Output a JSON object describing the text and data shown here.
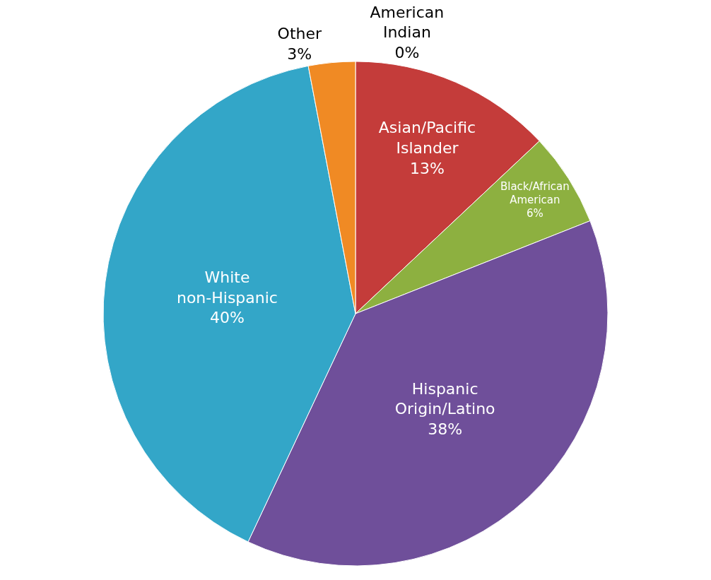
{
  "chart_data": {
    "type": "pie",
    "categories": [
      "American Indian",
      "Asian/Pacific Islander",
      "Black/African American",
      "Hispanic Origin/Latino",
      "White non-Hispanic",
      "Other"
    ],
    "values": [
      0,
      13,
      6,
      38,
      40,
      3
    ],
    "value_labels": [
      "0%",
      "13%",
      "6%",
      "38%",
      "40%",
      "3%"
    ],
    "colors": [
      "#1f5fa8",
      "#c43c3a",
      "#8db040",
      "#6f4f9a",
      "#33a6c8",
      "#f08a24"
    ],
    "legend": false
  }
}
